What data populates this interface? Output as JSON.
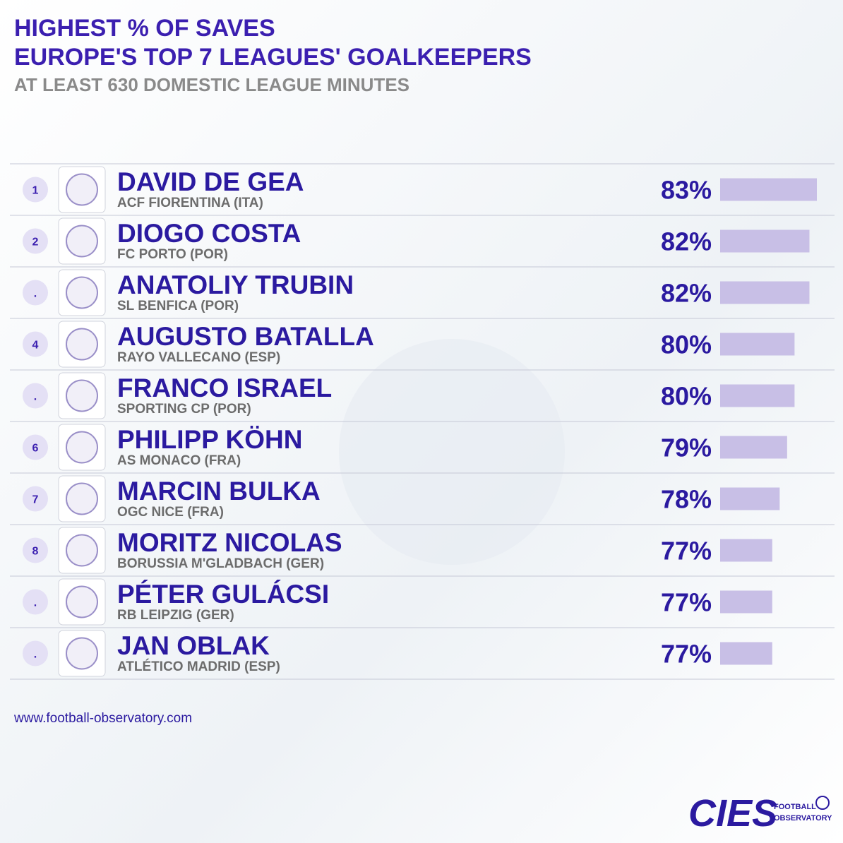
{
  "header": {
    "title_line1": "HIGHEST % OF SAVES",
    "title_line2": "EUROPE'S TOP 7 LEAGUES' GOALKEEPERS",
    "subtitle": "AT LEAST 630 DOMESTIC LEAGUE MINUTES"
  },
  "table": {
    "xlim": [
      70,
      83
    ],
    "rows": [
      {
        "rank": "1",
        "name": "DAVID DE GEA",
        "club": "ACF FIORENTINA (ITA)",
        "value": 83,
        "value_label": "83%"
      },
      {
        "rank": "2",
        "name": "DIOGO COSTA",
        "club": "FC PORTO (POR)",
        "value": 82,
        "value_label": "82%"
      },
      {
        "rank": ".",
        "name": "ANATOLIY TRUBIN",
        "club": "SL BENFICA (POR)",
        "value": 82,
        "value_label": "82%"
      },
      {
        "rank": "4",
        "name": "AUGUSTO BATALLA",
        "club": "RAYO VALLECANO (ESP)",
        "value": 80,
        "value_label": "80%"
      },
      {
        "rank": ".",
        "name": "FRANCO ISRAEL",
        "club": "SPORTING CP (POR)",
        "value": 80,
        "value_label": "80%"
      },
      {
        "rank": "6",
        "name": "PHILIPP KÖHN",
        "club": "AS MONACO (FRA)",
        "value": 79,
        "value_label": "79%"
      },
      {
        "rank": "7",
        "name": "MARCIN BULKA",
        "club": "OGC NICE (FRA)",
        "value": 78,
        "value_label": "78%"
      },
      {
        "rank": "8",
        "name": "MORITZ NICOLAS",
        "club": "BORUSSIA M'GLADBACH (GER)",
        "value": 77,
        "value_label": "77%"
      },
      {
        "rank": ".",
        "name": "PÉTER GULÁCSI",
        "club": "RB LEIPZIG (GER)",
        "value": 77,
        "value_label": "77%"
      },
      {
        "rank": ".",
        "name": "JAN OBLAK",
        "club": "ATLÉTICO MADRID (ESP)",
        "value": 77,
        "value_label": "77%"
      }
    ]
  },
  "footer": {
    "url": "www.football-observatory.com",
    "logo": "CIES",
    "logo_line1": "FOOTBALL",
    "logo_line2": "OBSERVATORY"
  }
}
